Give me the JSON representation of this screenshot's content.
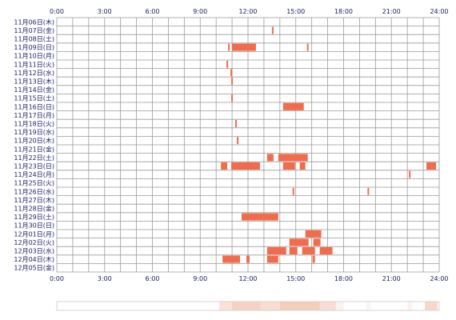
{
  "chart_data": {
    "type": "heatmap",
    "x_ticks": [
      "0:00",
      "3:00",
      "6:00",
      "9:00",
      "12:00",
      "15:00",
      "18:00",
      "21:00",
      "24:00"
    ],
    "xlim": [
      0,
      24
    ],
    "grid": true,
    "rows": [
      "11月06日(木)",
      "11月07日(金)",
      "11月08日(土)",
      "11月09日(日)",
      "11月10日(月)",
      "11月11日(火)",
      "11月12日(水)",
      "11月13日(木)",
      "11月14日(金)",
      "11月15日(土)",
      "11月16日(日)",
      "11月17日(月)",
      "11月18日(火)",
      "11月19日(水)",
      "11月20日(木)",
      "11月21日(金)",
      "11月22日(土)",
      "11月23日(日)",
      "11月24日(月)",
      "11月25日(火)",
      "11月26日(水)",
      "11月27日(木)",
      "11月28日(金)",
      "11月29日(土)",
      "11月30日(日)",
      "12月01日(月)",
      "12月02日(火)",
      "12月03日(水)",
      "12月04日(木)",
      "12月05日(金)"
    ],
    "events": [
      {
        "row": 1,
        "start": 13.5,
        "end": 13.6
      },
      {
        "row": 3,
        "start": 10.75,
        "end": 10.85
      },
      {
        "row": 3,
        "start": 11.0,
        "end": 12.5
      },
      {
        "row": 3,
        "start": 15.7,
        "end": 15.8
      },
      {
        "row": 5,
        "start": 10.65,
        "end": 10.75
      },
      {
        "row": 6,
        "start": 10.9,
        "end": 11.0
      },
      {
        "row": 7,
        "start": 10.95,
        "end": 11.05
      },
      {
        "row": 9,
        "start": 10.95,
        "end": 11.05
      },
      {
        "row": 10,
        "start": 14.2,
        "end": 15.5
      },
      {
        "row": 12,
        "start": 11.2,
        "end": 11.3
      },
      {
        "row": 14,
        "start": 11.3,
        "end": 11.4
      },
      {
        "row": 16,
        "start": 13.2,
        "end": 13.6
      },
      {
        "row": 16,
        "start": 13.9,
        "end": 15.75
      },
      {
        "row": 17,
        "start": 10.3,
        "end": 10.7
      },
      {
        "row": 17,
        "start": 10.95,
        "end": 12.75
      },
      {
        "row": 17,
        "start": 14.2,
        "end": 14.95
      },
      {
        "row": 17,
        "start": 15.25,
        "end": 15.6
      },
      {
        "row": 17,
        "start": 23.2,
        "end": 23.8
      },
      {
        "row": 18,
        "start": 22.1,
        "end": 22.2
      },
      {
        "row": 20,
        "start": 14.8,
        "end": 14.9
      },
      {
        "row": 20,
        "start": 19.5,
        "end": 19.6
      },
      {
        "row": 23,
        "start": 11.6,
        "end": 13.9
      },
      {
        "row": 25,
        "start": 15.6,
        "end": 16.6
      },
      {
        "row": 26,
        "start": 14.6,
        "end": 15.8
      },
      {
        "row": 26,
        "start": 16.1,
        "end": 16.55
      },
      {
        "row": 27,
        "start": 13.2,
        "end": 14.4
      },
      {
        "row": 27,
        "start": 14.6,
        "end": 15.1
      },
      {
        "row": 27,
        "start": 15.4,
        "end": 16.2
      },
      {
        "row": 27,
        "start": 16.5,
        "end": 17.3
      },
      {
        "row": 28,
        "start": 10.4,
        "end": 11.5
      },
      {
        "row": 28,
        "start": 11.9,
        "end": 12.1
      },
      {
        "row": 28,
        "start": 13.2,
        "end": 13.9
      },
      {
        "row": 28,
        "start": 16.05,
        "end": 16.2
      }
    ],
    "summary_bands": [
      {
        "start": 10.2,
        "end": 11.0,
        "level": 0.25
      },
      {
        "start": 11.0,
        "end": 12.8,
        "level": 0.4
      },
      {
        "start": 12.8,
        "end": 14.0,
        "level": 0.3
      },
      {
        "start": 14.0,
        "end": 16.5,
        "level": 0.45
      },
      {
        "start": 16.5,
        "end": 17.5,
        "level": 0.3
      },
      {
        "start": 17.5,
        "end": 18.0,
        "level": 0.12
      },
      {
        "start": 19.4,
        "end": 19.7,
        "level": 0.1
      },
      {
        "start": 22.0,
        "end": 22.3,
        "level": 0.12
      },
      {
        "start": 23.1,
        "end": 23.9,
        "level": 0.35
      }
    ],
    "colors": {
      "bar": "#f26b4a",
      "grid": "#9a9a9a",
      "band_base": "#f5c6b4"
    }
  }
}
